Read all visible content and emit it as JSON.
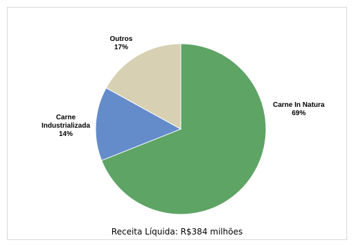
{
  "chart_data": {
    "type": "pie",
    "slices": [
      {
        "label": "Carne In Natura",
        "value": 69,
        "display": "69%",
        "color": "#5ea465"
      },
      {
        "label": "Carne Industrializada",
        "value": 14,
        "display": "14%",
        "color": "#648ccb"
      },
      {
        "label": "Outros",
        "value": 17,
        "display": "17%",
        "color": "#d8d0b3"
      }
    ],
    "start_angle": "top",
    "direction": "clockwise",
    "title": "",
    "caption": "Receita Líquida:  R$384 milhões"
  }
}
